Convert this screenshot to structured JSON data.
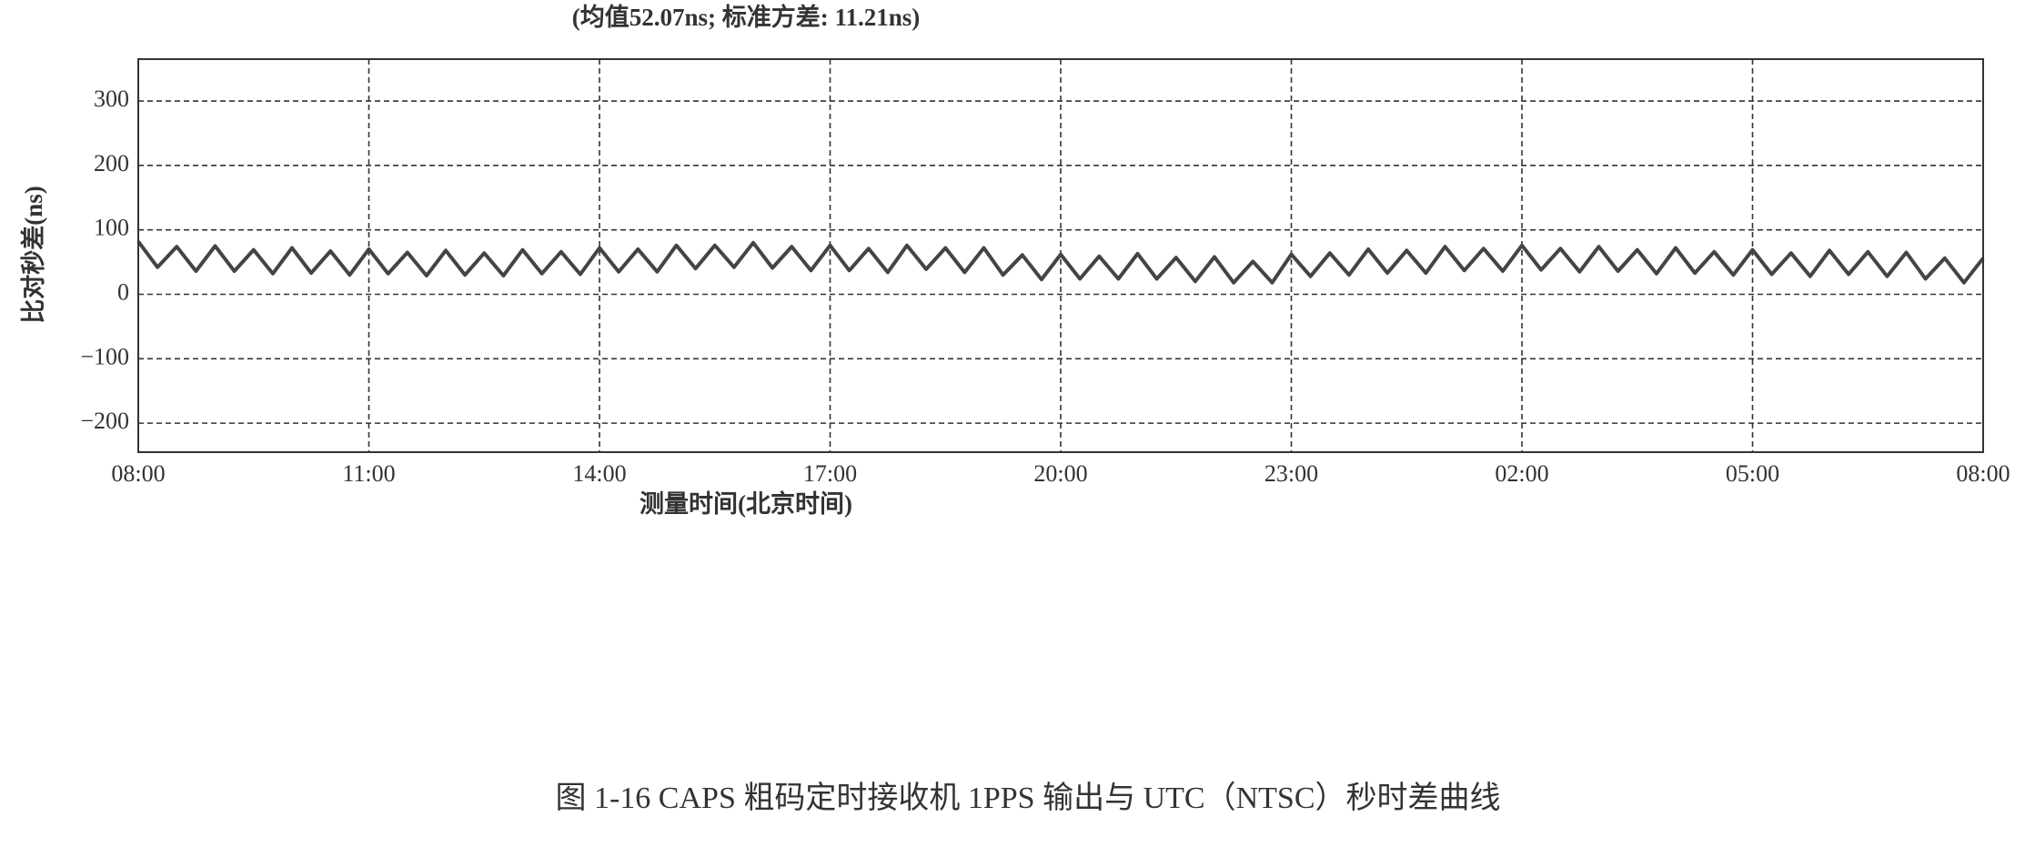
{
  "chart_data": {
    "type": "line",
    "title": "(均值52.07ns; 标准方差: 11.21ns)",
    "y_label": "比对秒差(ns)",
    "x_label": "测量时间(北京时间)",
    "caption": "图 1-16   CAPS 粗码定时接收机 1PPS 输出与 UTC（NTSC）秒时差曲线",
    "color": "#444444",
    "grid": true,
    "x": [
      8,
      8.25,
      8.5,
      8.75,
      9,
      9.25,
      9.5,
      9.75,
      10,
      10.25,
      10.5,
      10.75,
      11,
      11.25,
      11.5,
      11.75,
      12,
      12.25,
      12.5,
      12.75,
      13,
      13.25,
      13.5,
      13.75,
      14,
      14.25,
      14.5,
      14.75,
      15,
      15.25,
      15.5,
      15.75,
      16,
      16.25,
      16.5,
      16.75,
      17,
      17.25,
      17.5,
      17.75,
      18,
      18.25,
      18.5,
      18.75,
      19,
      19.25,
      19.5,
      19.75,
      20,
      20.25,
      20.5,
      20.75,
      21,
      21.25,
      21.5,
      21.75,
      22,
      22.25,
      22.5,
      22.75,
      23,
      23.25,
      23.5,
      23.75,
      24,
      24.25,
      24.5,
      24.75,
      25,
      25.25,
      25.5,
      25.75,
      26,
      26.25,
      26.5,
      26.75,
      27,
      27.25,
      27.5,
      27.75,
      28,
      28.25,
      28.5,
      28.75,
      29,
      29.25,
      29.5,
      29.75,
      30,
      30.25,
      30.5,
      30.75,
      31,
      31.25,
      31.5,
      31.75,
      32
    ],
    "values": [
      82,
      42,
      74,
      36,
      75,
      36,
      69,
      32,
      72,
      33,
      67,
      30,
      70,
      32,
      65,
      29,
      68,
      30,
      64,
      29,
      69,
      32,
      66,
      31,
      72,
      35,
      70,
      35,
      76,
      40,
      76,
      42,
      80,
      41,
      74,
      37,
      76,
      37,
      71,
      34,
      76,
      39,
      72,
      34,
      72,
      30,
      61,
      23,
      62,
      24,
      59,
      24,
      63,
      24,
      57,
      20,
      58,
      18,
      51,
      18,
      62,
      28,
      64,
      30,
      70,
      33,
      68,
      33,
      74,
      37,
      71,
      36,
      76,
      38,
      71,
      35,
      74,
      36,
      69,
      32,
      72,
      33,
      66,
      30,
      69,
      31,
      64,
      28,
      68,
      31,
      66,
      28,
      65,
      24,
      56,
      18,
      56
    ],
    "xlim": [
      8,
      32
    ],
    "xticks": [
      {
        "value": 8,
        "label": "08:00"
      },
      {
        "value": 11,
        "label": "11:00"
      },
      {
        "value": 14,
        "label": "14:00"
      },
      {
        "value": 17,
        "label": "17:00"
      },
      {
        "value": 20,
        "label": "20:00"
      },
      {
        "value": 23,
        "label": "23:00"
      },
      {
        "value": 26,
        "label": "02:00"
      },
      {
        "value": 29,
        "label": "05:00"
      },
      {
        "value": 32,
        "label": "08:00"
      }
    ],
    "ylim": [
      -245,
      365
    ],
    "yticks": [
      {
        "value": -200,
        "label": "−200"
      },
      {
        "value": -100,
        "label": "−100"
      },
      0,
      100,
      200,
      300
    ]
  }
}
